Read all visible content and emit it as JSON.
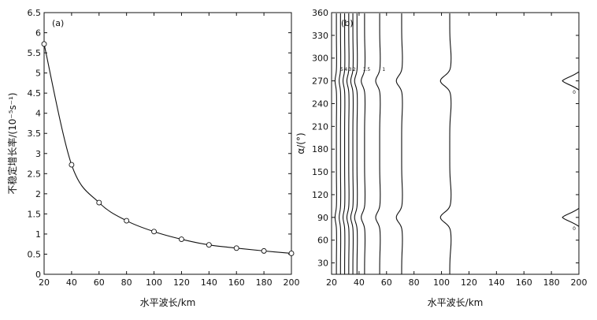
{
  "chart_data": [
    {
      "panel": "(a)",
      "type": "line",
      "xlabel": "水平波长/km",
      "ylabel": "不稳定增长率/(10⁻⁵s⁻¹)",
      "xlim": [
        20,
        200
      ],
      "ylim": [
        0,
        6.5
      ],
      "x_ticks": [
        "20",
        "40",
        "60",
        "80",
        "100",
        "120",
        "140",
        "160",
        "180",
        "200"
      ],
      "y_ticks": [
        "0",
        "0.5",
        "1",
        "1.5",
        "2",
        "2.5",
        "3",
        "3.5",
        "4",
        "4.5",
        "5",
        "5.5",
        "6",
        "6.5"
      ],
      "x": [
        20,
        40,
        60,
        80,
        100,
        120,
        140,
        160,
        180,
        200
      ],
      "values": [
        5.72,
        2.72,
        1.78,
        1.33,
        1.06,
        0.87,
        0.73,
        0.65,
        0.58,
        0.52
      ],
      "markers": "open-circle",
      "grid": false
    },
    {
      "panel": "(b)",
      "type": "contour",
      "xlabel": "水平波长/km",
      "ylabel": "α/(°)",
      "xlim": [
        20,
        200
      ],
      "ylim": [
        15,
        360
      ],
      "x_ticks": [
        "20",
        "40",
        "60",
        "80",
        "100",
        "120",
        "140",
        "160",
        "180",
        "200"
      ],
      "y_ticks": [
        "30",
        "60",
        "90",
        "120",
        "150",
        "180",
        "210",
        "240",
        "270",
        "300",
        "330",
        "360"
      ],
      "contours": [
        {
          "base_x": 23.5,
          "bump": 1.0
        },
        {
          "base_x": 26.5,
          "bump": 1.0
        },
        {
          "base_x": 29.5,
          "bump": 1.2
        },
        {
          "base_x": 32.5,
          "bump": 1.4
        },
        {
          "base_x": 35.5,
          "bump": 1.6
        },
        {
          "base_x": 38.5,
          "bump": 1.8
        },
        {
          "base_x": 44.0,
          "bump": 2.5
        },
        {
          "base_x": 55.0,
          "bump": 3.0
        },
        {
          "base_x": 71.0,
          "bump": 4.0
        },
        {
          "base_x": 106.0,
          "bump": 7.0
        }
      ],
      "contour_labels": [
        "5",
        "4",
        "3",
        "2",
        "1.5",
        "1",
        "0"
      ],
      "closed_contour": {
        "label": "0",
        "x_min": 188,
        "x_max": 200,
        "centers_deg": [
          90,
          270
        ]
      },
      "grid": false
    }
  ],
  "text": {
    "panel_a_tag": "(a)",
    "panel_b_tag": "(b)",
    "panel_a_xlabel": "水平波长/km",
    "panel_a_ylabel": "不稳定增长率/(10⁻⁵s⁻¹)",
    "panel_b_xlabel": "水平波长/km",
    "panel_b_ylabel": "α/(°)"
  }
}
